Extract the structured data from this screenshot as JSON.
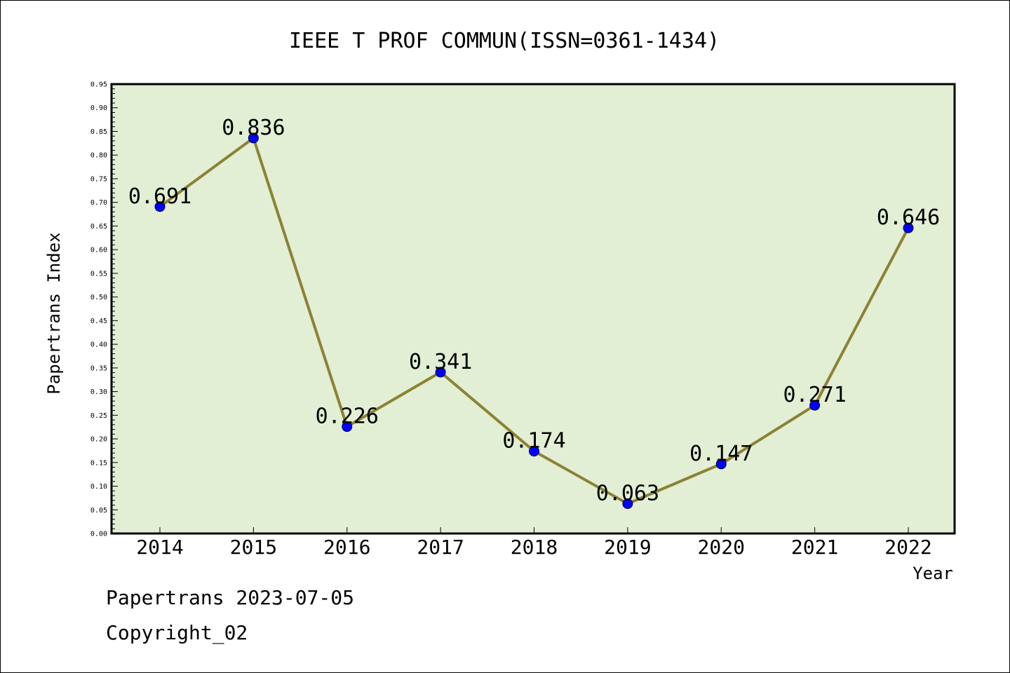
{
  "chart_data": {
    "type": "line",
    "title": "IEEE T PROF COMMUN(ISSN=0361-1434)",
    "xlabel": "Year",
    "ylabel": "Papertrans Index",
    "categories": [
      "2014",
      "2015",
      "2016",
      "2017",
      "2018",
      "2019",
      "2020",
      "2021",
      "2022"
    ],
    "values": [
      0.691,
      0.836,
      0.226,
      0.341,
      0.174,
      0.063,
      0.147,
      0.271,
      0.646
    ],
    "data_labels": [
      "0.691",
      "0.836",
      "0.226",
      "0.341",
      "0.174",
      "0.063",
      "0.147",
      "0.271",
      "0.646"
    ],
    "ylim": [
      0,
      0.95
    ],
    "yticks": [
      "0.00",
      "0.05",
      "0.10",
      "0.15",
      "0.20",
      "0.25",
      "0.30",
      "0.35",
      "0.40",
      "0.45",
      "0.50",
      "0.55",
      "0.60",
      "0.65",
      "0.70",
      "0.75",
      "0.80",
      "0.85",
      "0.90",
      "0.95"
    ],
    "grid": false,
    "colors": {
      "plot_background": "#e2efd4",
      "line": "#8b8235",
      "marker": "#0000ff"
    }
  },
  "footer": {
    "source": "Papertrans 2023-07-05",
    "copyright": "Copyright_02"
  }
}
